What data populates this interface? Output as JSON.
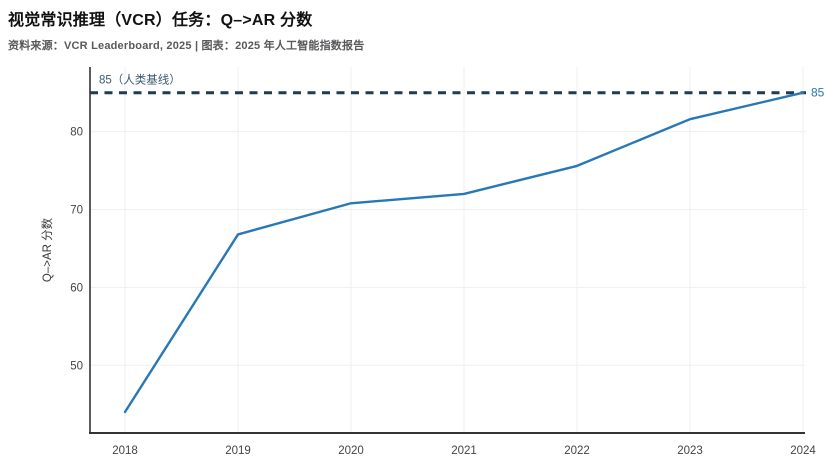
{
  "header": {
    "title": "视觉常识推理（VCR）任务：Q–>AR 分数",
    "source": "资料来源：VCR Leaderboard, 2025 | 图表：2025 年人工智能指数报告"
  },
  "chart_data": {
    "type": "line",
    "title": "视觉常识推理（VCR）任务：Q–>AR 分数",
    "x": [
      2018,
      2019,
      2020,
      2021,
      2022,
      2023,
      2024
    ],
    "series": [
      {
        "name": "Q–>AR 分数",
        "values": [
          44.0,
          66.8,
          70.8,
          72.0,
          75.6,
          81.6,
          85.0
        ]
      }
    ],
    "baseline": {
      "value": 85,
      "label": "85（人类基线）"
    },
    "end_label": "85",
    "ylabel": "Q–>AR 分数",
    "yticks": [
      50,
      60,
      70,
      80
    ],
    "ylim": [
      41.3,
      88.3
    ],
    "grid": true,
    "legend": "none",
    "colors": {
      "line": "#2878b5",
      "baseline_line": "#1e3c50",
      "baseline_text": "#3d5a70",
      "end_label": "#2878b5",
      "axis": "#333333",
      "grid": "#efefef",
      "tick_text": "#444444"
    }
  }
}
